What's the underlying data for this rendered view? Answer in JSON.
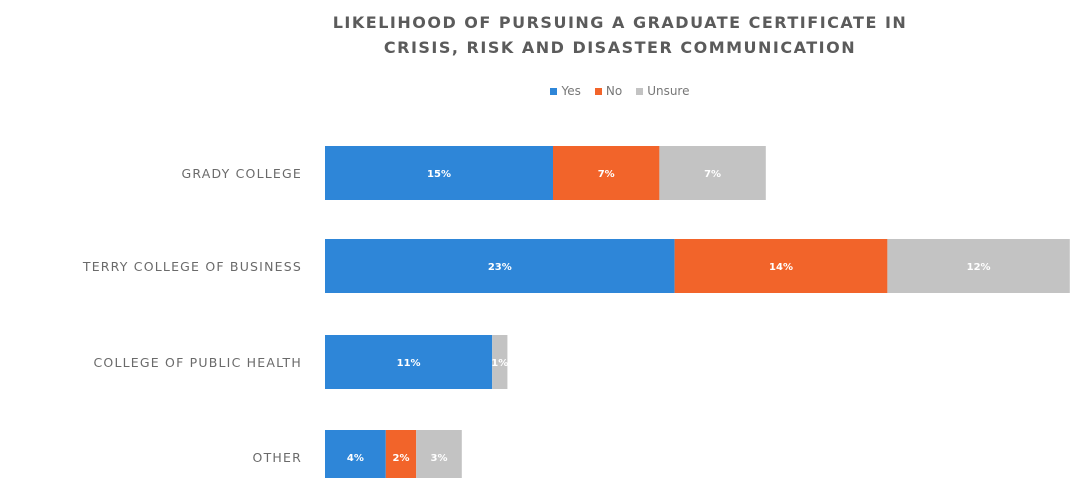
{
  "chart_data": {
    "type": "bar",
    "orientation": "horizontal",
    "stacked": true,
    "title_lines": [
      "LIKELIHOOD OF PURSUING A GRADUATE CERTIFICATE IN",
      "CRISIS, RISK AND DISASTER COMMUNICATION"
    ],
    "legend_position": "top-center",
    "grid": false,
    "categories": [
      "GRADY COLLEGE",
      "TERRY COLLEGE OF BUSINESS",
      "COLLEGE OF PUBLIC HEALTH",
      "OTHER"
    ],
    "series": [
      {
        "name": "Yes",
        "color": "#2e86d8",
        "values": [
          15,
          23,
          11,
          4
        ],
        "labels": [
          "15%",
          "23%",
          "11%",
          "4%"
        ]
      },
      {
        "name": "No",
        "color": "#f2642a",
        "values": [
          7,
          14,
          0,
          2
        ],
        "labels": [
          "7%",
          "14%",
          "",
          "2%"
        ]
      },
      {
        "name": "Unsure",
        "color": "#c3c3c3",
        "values": [
          7,
          12,
          1,
          3
        ],
        "labels": [
          "7%",
          "12%",
          "1%",
          "3%"
        ]
      }
    ]
  }
}
